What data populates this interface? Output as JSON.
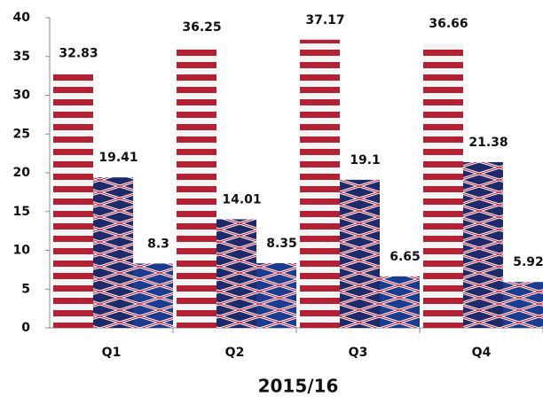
{
  "chart_data": {
    "type": "bar",
    "x_label": "2015/16",
    "categories": [
      "Q1",
      "Q2",
      "Q3",
      "Q4"
    ],
    "series": [
      {
        "color": "#b22234",
        "values": [
          32.83,
          36.25,
          37.17,
          36.66
        ]
      },
      {
        "color": "#1f2a6b",
        "values": [
          19.41,
          14.01,
          19.1,
          21.38
        ]
      },
      {
        "color": "#1c3d8f",
        "values": [
          8.3,
          8.35,
          6.65,
          5.92
        ]
      }
    ],
    "ylim": [
      0,
      40
    ],
    "yticks": [
      0,
      5,
      10,
      15,
      20,
      25,
      30,
      35,
      40
    ],
    "grid": false
  }
}
